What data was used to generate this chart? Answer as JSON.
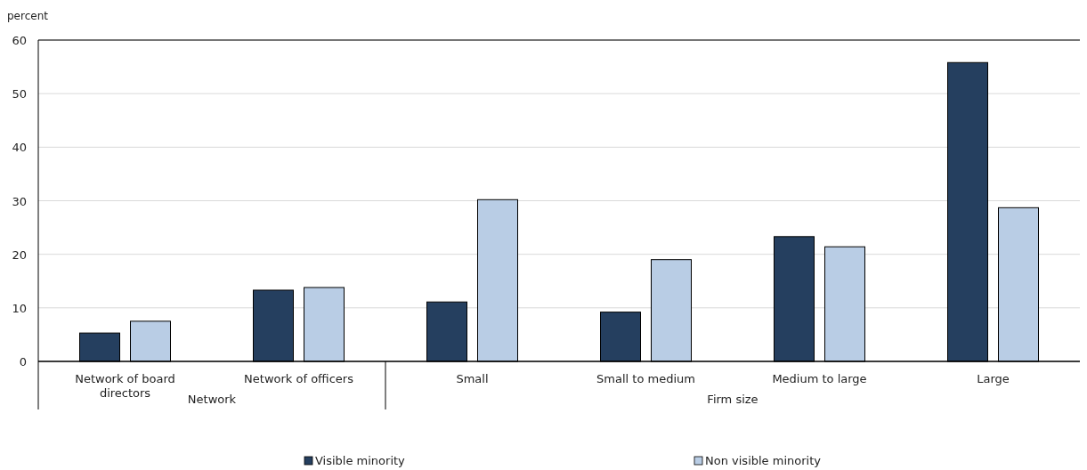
{
  "chart_data": {
    "type": "bar",
    "ylabel": "percent",
    "categories": [
      "Network of board directors",
      "Network of officers",
      "Small",
      "Small to medium",
      "Medium to large",
      "Large"
    ],
    "series": [
      {
        "name": "Visible minority",
        "color": "#253f5f",
        "values": [
          5.3,
          13.3,
          11.1,
          9.2,
          23.3,
          55.8
        ]
      },
      {
        "name": "Non visible minority",
        "color": "#b9cde5",
        "values": [
          7.5,
          13.8,
          30.2,
          19.0,
          21.4,
          28.7
        ]
      }
    ],
    "ylim": [
      0,
      60
    ],
    "yticks": [
      0,
      10,
      20,
      30,
      40,
      50,
      60
    ],
    "grid": "y",
    "legend": "bottom",
    "annotations": [
      "Network",
      "Firm size"
    ]
  }
}
